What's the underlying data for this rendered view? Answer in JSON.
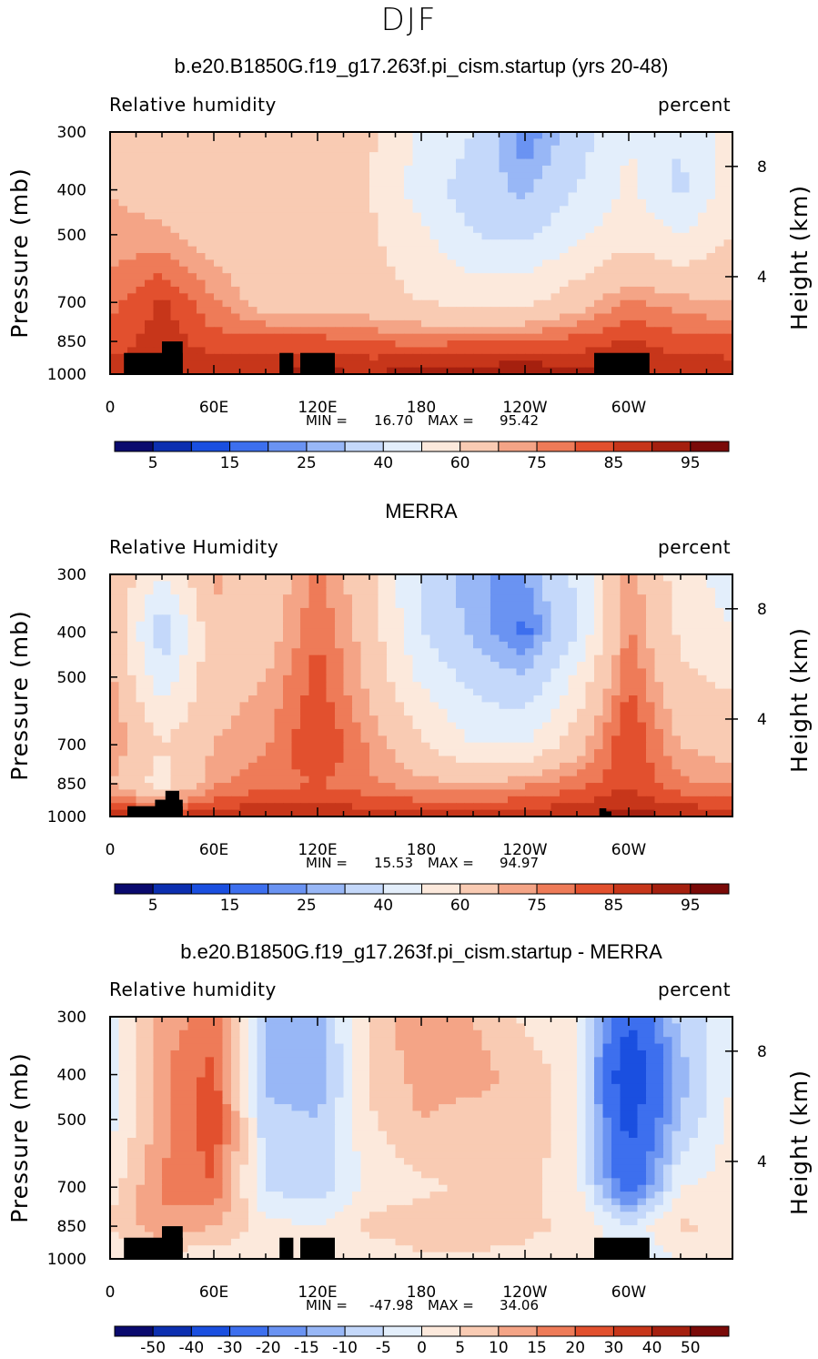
{
  "figure": {
    "season": "DJF",
    "panels": [
      {
        "title": "b.e20.B1850G.f19_g17.263f.pi_cism.startup (yrs 20-48)",
        "variable_label": "Relative humidity",
        "units_label": "percent",
        "min_label": "MIN =",
        "min_value": "16.70",
        "max_label": "MAX =",
        "max_value": "95.42",
        "colorbar_labels": [
          "5",
          "15",
          "25",
          "40",
          "60",
          "75",
          "85",
          "95"
        ]
      },
      {
        "title": "MERRA",
        "variable_label": "Relative Humidity",
        "units_label": "percent",
        "min_label": "MIN =",
        "min_value": "15.53",
        "max_label": "MAX =",
        "max_value": "94.97",
        "colorbar_labels": [
          "5",
          "15",
          "25",
          "40",
          "60",
          "75",
          "85",
          "95"
        ]
      },
      {
        "title": "b.e20.B1850G.f19_g17.263f.pi_cism.startup - MERRA",
        "variable_label": "Relative humidity",
        "units_label": "percent",
        "min_label": "MIN =",
        "min_value": "-47.98",
        "max_label": "MAX =",
        "max_value": "34.06",
        "colorbar_labels": [
          "-50",
          "-40",
          "-30",
          "-20",
          "-15",
          "-10",
          "-5",
          "0",
          "5",
          "10",
          "15",
          "20",
          "30",
          "40",
          "50"
        ]
      }
    ]
  },
  "chart_data": [
    {
      "type": "heatmap",
      "title": "b.e20.B1850G.f19_g17.263f.pi_cism.startup (yrs 20-48)",
      "xlabel": "",
      "ylabel": "Pressure (mb)",
      "ylabel_right": "Height (km)",
      "x_tick_labels": [
        "0",
        "60E",
        "120E",
        "180",
        "120W",
        "60W"
      ],
      "y_tick_labels": [
        "300",
        "400",
        "500",
        "700",
        "850",
        "1000"
      ],
      "y_right_tick_labels": [
        "8",
        "4"
      ],
      "xlim": [
        0,
        360
      ],
      "ylim": [
        1000,
        300
      ],
      "y_scale": "log",
      "legend": "bottom",
      "colorbar_levels": [
        5,
        10,
        15,
        20,
        25,
        30,
        40,
        50,
        60,
        70,
        75,
        80,
        85,
        90,
        95
      ],
      "colors": [
        "#0a0a6e",
        "#0c2fb0",
        "#1a4fe0",
        "#3d6fee",
        "#6a93f2",
        "#98b7f6",
        "#c4d8fa",
        "#e3eefb",
        "#fce9dc",
        "#f9cbb3",
        "#f4a486",
        "#ee7b58",
        "#e2502e",
        "#c7361a",
        "#a5200f",
        "#7a0a08"
      ],
      "lon": [
        0,
        30,
        60,
        90,
        120,
        150,
        180,
        210,
        240,
        270,
        300,
        330,
        360
      ],
      "levels_mb": [
        300,
        400,
        500,
        700,
        850,
        1000
      ],
      "values": [
        [
          70,
          68,
          66,
          60,
          64,
          62,
          48,
          40,
          20,
          35,
          50,
          40,
          55
        ],
        [
          70,
          66,
          64,
          62,
          62,
          60,
          45,
          35,
          28,
          40,
          52,
          38,
          55
        ],
        [
          72,
          72,
          66,
          62,
          64,
          62,
          52,
          40,
          38,
          48,
          56,
          50,
          60
        ],
        [
          78,
          86,
          76,
          66,
          66,
          64,
          60,
          58,
          58,
          66,
          76,
          72,
          70
        ],
        [
          82,
          88,
          82,
          82,
          82,
          80,
          78,
          80,
          80,
          82,
          86,
          82,
          82
        ],
        [
          88,
          90,
          90,
          90,
          92,
          90,
          94,
          94,
          95,
          92,
          90,
          90,
          88
        ]
      ]
    },
    {
      "type": "heatmap",
      "title": "MERRA",
      "xlabel": "",
      "ylabel": "Pressure (mb)",
      "ylabel_right": "Height (km)",
      "x_tick_labels": [
        "0",
        "60E",
        "120E",
        "180",
        "120W",
        "60W"
      ],
      "y_tick_labels": [
        "300",
        "400",
        "500",
        "700",
        "850",
        "1000"
      ],
      "y_right_tick_labels": [
        "8",
        "4"
      ],
      "xlim": [
        0,
        360
      ],
      "ylim": [
        1000,
        300
      ],
      "y_scale": "log",
      "legend": "bottom",
      "colorbar_levels": [
        5,
        10,
        15,
        20,
        25,
        30,
        40,
        50,
        60,
        70,
        75,
        80,
        85,
        90,
        95
      ],
      "colors": [
        "#0a0a6e",
        "#0c2fb0",
        "#1a4fe0",
        "#3d6fee",
        "#6a93f2",
        "#98b7f6",
        "#c4d8fa",
        "#e3eefb",
        "#fce9dc",
        "#f9cbb3",
        "#f4a486",
        "#ee7b58",
        "#e2502e",
        "#c7361a",
        "#a5200f",
        "#7a0a08"
      ],
      "lon": [
        0,
        30,
        60,
        90,
        120,
        150,
        180,
        210,
        240,
        270,
        300,
        330,
        360
      ],
      "levels_mb": [
        300,
        400,
        500,
        700,
        850,
        1000
      ],
      "values": [
        [
          70,
          50,
          72,
          64,
          76,
          64,
          38,
          25,
          25,
          42,
          74,
          55,
          45
        ],
        [
          72,
          32,
          68,
          66,
          80,
          66,
          40,
          28,
          18,
          40,
          76,
          58,
          50
        ],
        [
          72,
          44,
          66,
          70,
          82,
          68,
          48,
          36,
          30,
          52,
          80,
          62,
          58
        ],
        [
          76,
          60,
          70,
          74,
          86,
          74,
          62,
          50,
          50,
          66,
          86,
          70,
          66
        ],
        [
          70,
          56,
          74,
          78,
          80,
          76,
          72,
          70,
          74,
          78,
          84,
          76,
          74
        ],
        [
          88,
          86,
          88,
          90,
          90,
          88,
          88,
          88,
          88,
          90,
          92,
          90,
          88
        ]
      ]
    },
    {
      "type": "heatmap",
      "title": "b.e20.B1850G.f19_g17.263f.pi_cism.startup - MERRA",
      "xlabel": "",
      "ylabel": "Pressure (mb)",
      "ylabel_right": "Height (km)",
      "x_tick_labels": [
        "0",
        "60E",
        "120E",
        "180",
        "120W",
        "60W"
      ],
      "y_tick_labels": [
        "300",
        "400",
        "500",
        "700",
        "850",
        "1000"
      ],
      "y_right_tick_labels": [
        "8",
        "4"
      ],
      "xlim": [
        0,
        360
      ],
      "ylim": [
        1000,
        300
      ],
      "y_scale": "log",
      "legend": "bottom",
      "colorbar_levels": [
        -50,
        -40,
        -30,
        -20,
        -15,
        -10,
        -5,
        0,
        5,
        10,
        15,
        20,
        30,
        40,
        50
      ],
      "colors": [
        "#0a0a6e",
        "#0c2fb0",
        "#1a4fe0",
        "#3d6fee",
        "#6a93f2",
        "#98b7f6",
        "#c4d8fa",
        "#e3eefb",
        "#fce9dc",
        "#f9cbb3",
        "#f4a486",
        "#ee7b58",
        "#e2502e",
        "#c7361a",
        "#a5200f",
        "#7a0a08"
      ],
      "lon": [
        0,
        30,
        60,
        90,
        120,
        150,
        180,
        210,
        240,
        270,
        300,
        330,
        360
      ],
      "levels_mb": [
        300,
        400,
        500,
        700,
        850,
        1000
      ],
      "values": [
        [
          -2,
          12,
          18,
          -10,
          -12,
          6,
          14,
          10,
          4,
          0,
          -28,
          -8,
          -2
        ],
        [
          -4,
          14,
          22,
          -12,
          -14,
          6,
          12,
          12,
          8,
          2,
          -42,
          -12,
          0
        ],
        [
          -2,
          12,
          24,
          -8,
          -10,
          4,
          10,
          8,
          10,
          0,
          -34,
          -10,
          2
        ],
        [
          2,
          16,
          20,
          -6,
          -8,
          2,
          4,
          6,
          6,
          2,
          -26,
          0,
          2
        ],
        [
          6,
          14,
          10,
          2,
          0,
          6,
          8,
          8,
          6,
          4,
          -4,
          6,
          4
        ],
        [
          0,
          2,
          2,
          2,
          2,
          2,
          4,
          4,
          4,
          2,
          -2,
          0,
          0
        ]
      ]
    }
  ]
}
